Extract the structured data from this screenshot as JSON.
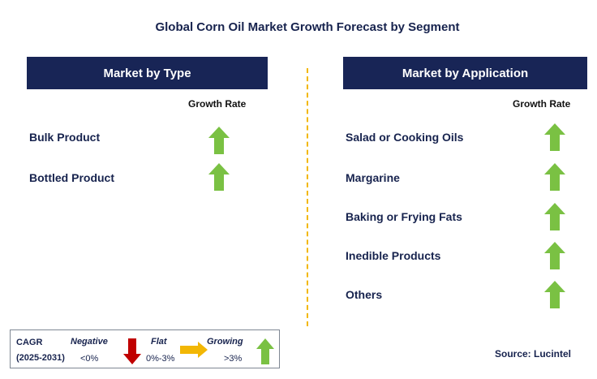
{
  "title": "Global Corn Oil Market Growth Forecast by Segment",
  "left_panel": {
    "header": "Market by Type",
    "growth_rate_label": "Growth Rate",
    "items": [
      {
        "label": "Bulk Product",
        "trend": "growing"
      },
      {
        "label": "Bottled Product",
        "trend": "growing"
      }
    ]
  },
  "right_panel": {
    "header": "Market by Application",
    "growth_rate_label": "Growth Rate",
    "items": [
      {
        "label": "Salad or Cooking Oils",
        "trend": "growing"
      },
      {
        "label": "Margarine",
        "trend": "growing"
      },
      {
        "label": "Baking or Frying Fats",
        "trend": "growing"
      },
      {
        "label": "Inedible Products",
        "trend": "growing"
      },
      {
        "label": "Others",
        "trend": "growing"
      }
    ]
  },
  "legend": {
    "cagr_label": "CAGR",
    "period": "(2025-2031)",
    "negative_label": "Negative",
    "negative_range": "<0%",
    "flat_label": "Flat",
    "flat_range": "0%-3%",
    "growing_label": "Growing",
    "growing_range": ">3%"
  },
  "source": "Source: Lucintel",
  "colors": {
    "header_bg": "#182556",
    "text": "#17234e",
    "growing_arrow": "#7ac143",
    "negative_arrow": "#c00000",
    "flat_arrow": "#f2b705",
    "divider": "#f2b705"
  },
  "icons": {
    "growing": "up-arrow-icon",
    "negative": "down-arrow-icon",
    "flat": "right-arrow-icon"
  }
}
